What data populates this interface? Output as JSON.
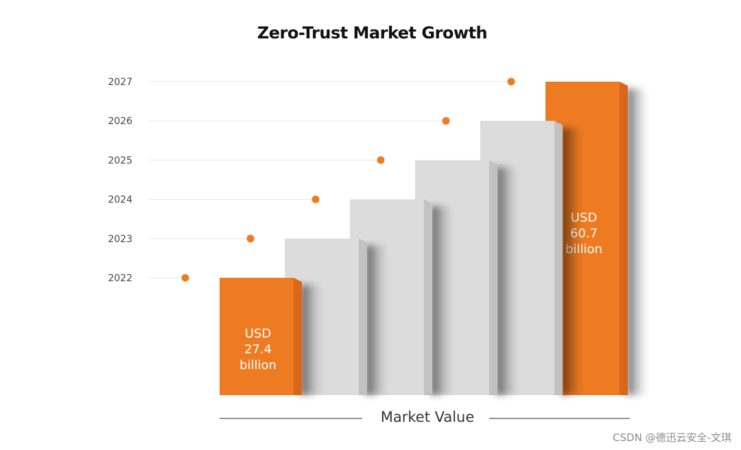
{
  "chart_data": {
    "type": "bar",
    "title": "Zero-Trust Market Growth",
    "xlabel": "Market Value",
    "ylabel": "",
    "categories": [
      "2022",
      "2023",
      "2024",
      "2025",
      "2026",
      "2027"
    ],
    "values": [
      27.4,
      null,
      null,
      null,
      null,
      60.7
    ],
    "value_labels": [
      [
        "USD",
        "27.4",
        "billion"
      ],
      [],
      [],
      [],
      [],
      [
        "USD",
        "60.7",
        "billion"
      ]
    ],
    "unit": "USD billion",
    "grid": true,
    "legend": "none"
  },
  "colors": {
    "accent": "#ee7b22",
    "accent_dark": "#d9661a",
    "bar_gray": "#dcdcdc",
    "bar_gray_side": "#c2c2c2",
    "gridline": "#e6e6e6",
    "axis_line": "#555555"
  },
  "watermark": "CSDN @德迅云安全-文琪"
}
